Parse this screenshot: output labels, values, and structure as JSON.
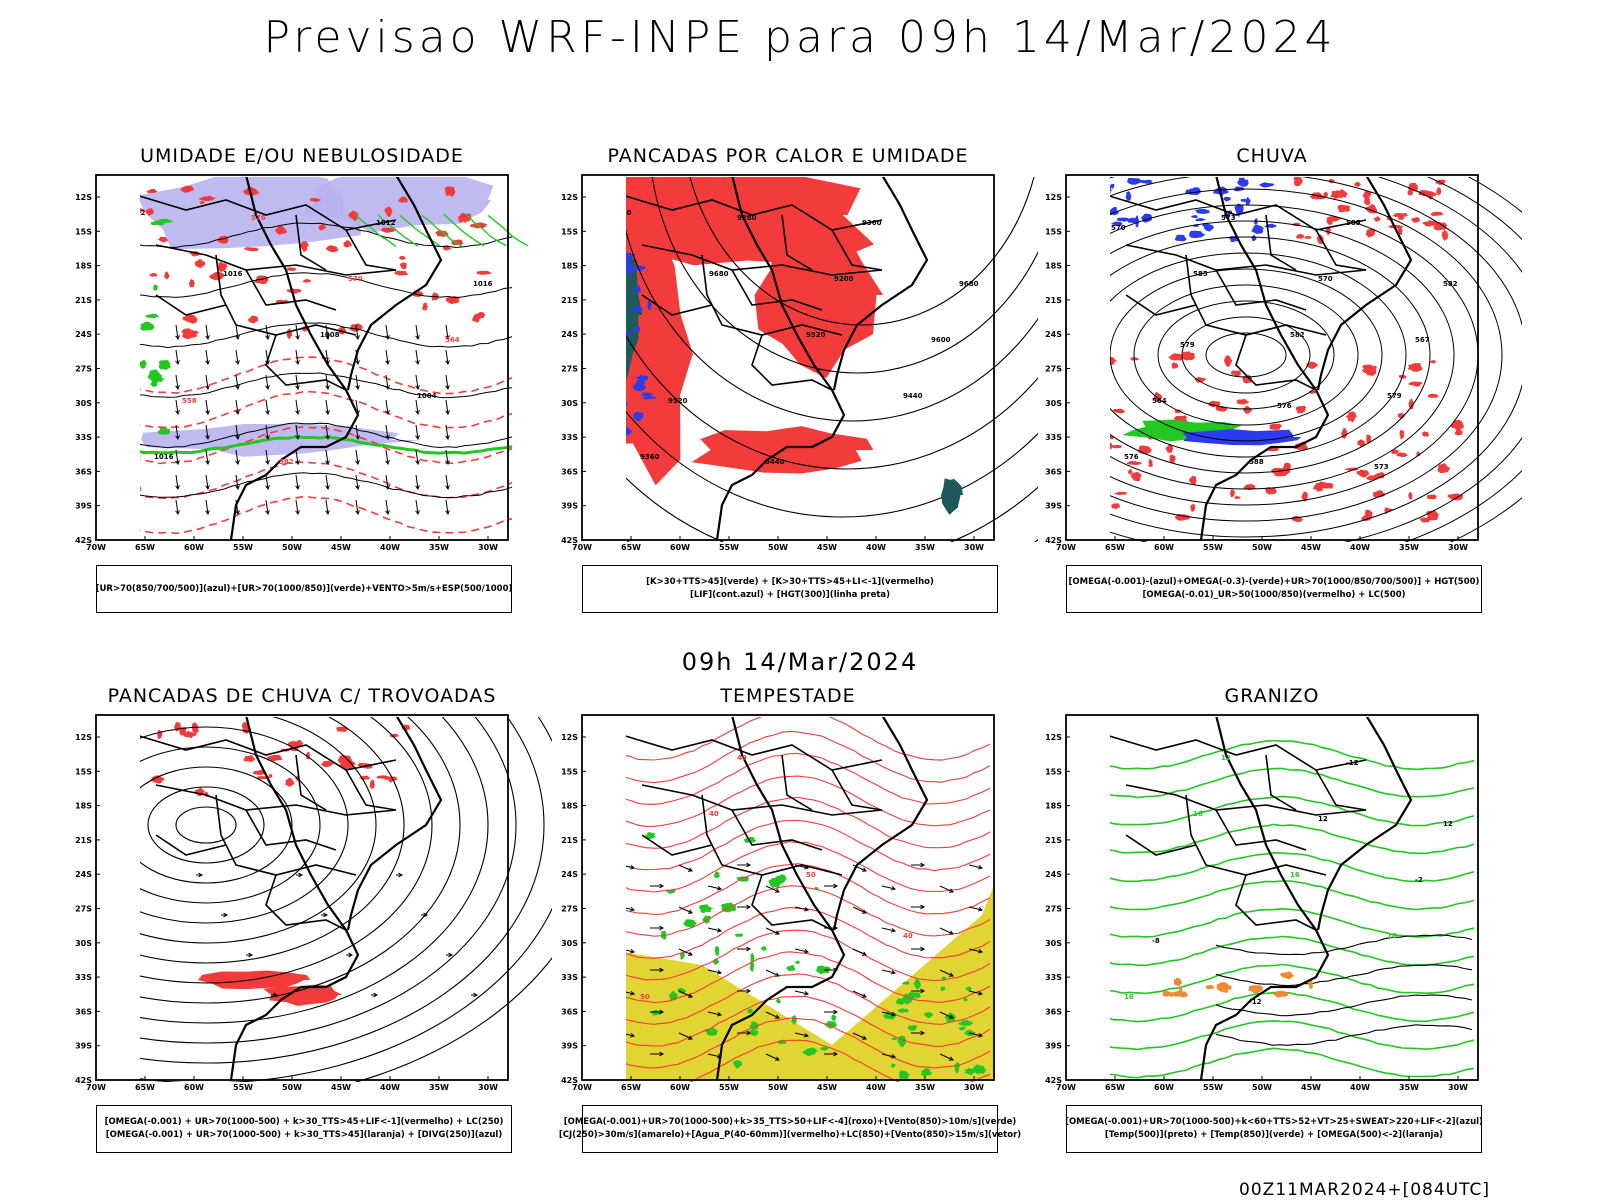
{
  "header": {
    "title": "Previsao WRF-INPE  para 09h 14/Mar/2024"
  },
  "mid_date": "09h 14/Mar/2024",
  "footer": {
    "run": "00Z11MAR2024+[084UTC]"
  },
  "axes": {
    "lat_labels": [
      "12S",
      "15S",
      "18S",
      "21S",
      "24S",
      "27S",
      "30S",
      "33S",
      "36S",
      "39S",
      "42S"
    ],
    "lon_labels": [
      "70W",
      "65W",
      "60W",
      "55W",
      "50W",
      "45W",
      "40W",
      "35W",
      "30W"
    ]
  },
  "panels": [
    {
      "id": "umidade",
      "title": "UMIDADE E/OU NEBULOSIDADE",
      "legend": [
        "[UR>70(850/700/500)](azul)+[UR>70(1000/850)](verde)+VENTO>5m/s+ESP(500/1000)"
      ],
      "contour_labels": [
        "1012",
        "1016",
        "1008",
        "1004",
        "1016",
        "576",
        "570",
        "564",
        "558",
        "582",
        "1012",
        "1016"
      ]
    },
    {
      "id": "pancadas-calor",
      "title": "PANCADAS POR CALOR E UMIDADE",
      "legend": [
        "[K>30+TTS>45](verde) + [K>30+TTS>45+LI<-1](vermelho)",
        "[LIF](cont.azul) + [HGT(300)](linha preta)"
      ],
      "contour_labels": [
        "9680",
        "9680",
        "9520",
        "9440",
        "9360",
        "9280",
        "9200",
        "9600",
        "9520",
        "9440",
        "9360",
        "9680"
      ]
    },
    {
      "id": "chuva",
      "title": "CHUVA",
      "legend": [
        "[OMEGA(-0.001)-(azul)+OMEGA(-0.3)-(verde)+UR>70(1000/850/700/500)] + HGT(500)",
        "[OMEGA(-0.01)_UR>50(1000/850)(vermelho) + LC(500)"
      ],
      "contour_labels": [
        "588",
        "585",
        "582",
        "579",
        "576",
        "573",
        "570",
        "567",
        "564",
        "588",
        "585",
        "582",
        "579",
        "576",
        "573",
        "570"
      ]
    },
    {
      "id": "trovoadas",
      "title": "PANCADAS DE CHUVA C/ TROVOADAS",
      "legend": [
        "[OMEGA(-0.001) + UR>70(1000-500) + k>30_TTS>45+LIF<-1](vermelho) + LC(250)",
        "[OMEGA(-0.001) + UR>70(1000-500) + k>30_TTS>45](laranja) + [DIVG(250)](azul)"
      ],
      "contour_labels": []
    },
    {
      "id": "tempestade",
      "title": "TEMPESTADE",
      "legend": [
        "[OMEGA(-0.001)+UR>70(1000-500)+k>35_TTS>50+LIF<-4](roxo)+[Vento(850)>10m/s](verde)",
        "[CJ(250)>30m/s](amarelo)+[Agua_P(40-60mm)](vermelho)+LC(850)+[Vento(850)>15m/s](vetor)"
      ],
      "contour_labels": [
        "50",
        "40",
        "50",
        "40",
        "50",
        "40"
      ]
    },
    {
      "id": "granizo",
      "title": "GRANIZO",
      "legend": [
        "[OMEGA(-0.001)+UR>70(1000-500)+k<60+TTS>52+VT>25+SWEAT>220+LIF<-2](azul)",
        "[Temp(500)](preto) + [Temp(850)](verde) + [OMEGA(500)<-2](laranja)"
      ],
      "contour_labels": [
        "16",
        "16",
        "16",
        "18",
        "16",
        "12",
        "12",
        "-2",
        "-8",
        "-12",
        "-12",
        "12"
      ]
    }
  ],
  "colors": {
    "red": "#f33b3b",
    "green": "#22c722",
    "blue": "#2b3bf0",
    "lavender": "#b8b4f0",
    "darkteal": "#1f5a5a",
    "yellow": "#e2d432",
    "orange": "#f08a30",
    "black": "#000000"
  }
}
